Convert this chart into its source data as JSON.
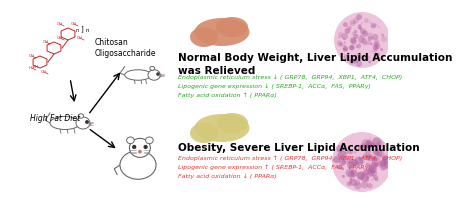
{
  "bg_color": "#ffffff",
  "top_title": "Normal Body Weight, Liver Lipid Accumulation\nwas Relieved",
  "bottom_title": "Obesity, Severe Liver Lipid Accumulation",
  "top_lines": [
    {
      "color": "#22aa22",
      "text": "Endoplasmic reticulum stress ↓ ( GRP78,  GRP94,  XBP1,  ATF4,  CHOP)"
    },
    {
      "color": "#22aa22",
      "text": "Lipogenic gene expression ↓ ( SREBP-1,  ACCα,  FAS,  PPARγ)"
    },
    {
      "color": "#22aa22",
      "text": "Fatty acid oxidation ↑ ( PPARα)"
    }
  ],
  "bottom_lines": [
    {
      "color": "#ee3333",
      "text": "Endoplasmic reticulum stress ↑ ( GRP78,  GRP94,  XBP1,  ATF4,  CHOP)"
    },
    {
      "color": "#ee3333",
      "text": "Lipogenic gene expression ↑ ( SREBP-1,  ACCα,  FAS,  PPARγ)"
    },
    {
      "color": "#ee3333",
      "text": "Fatty acid oxidation ↓ ( PPARα)"
    }
  ],
  "chitosan_label": "Chitosan\nOligosaccharide",
  "hfd_label": "High Fat Diet",
  "top_liver_color": "#d4896a",
  "bottom_liver_color": "#d4c87a",
  "circle_color": "#e8b0d0",
  "title_fontsize": 7.5,
  "body_fontsize": 4.5,
  "label_fontsize": 5.5,
  "struct_color": "#cc2222",
  "struct_line_color": "#cc2222"
}
